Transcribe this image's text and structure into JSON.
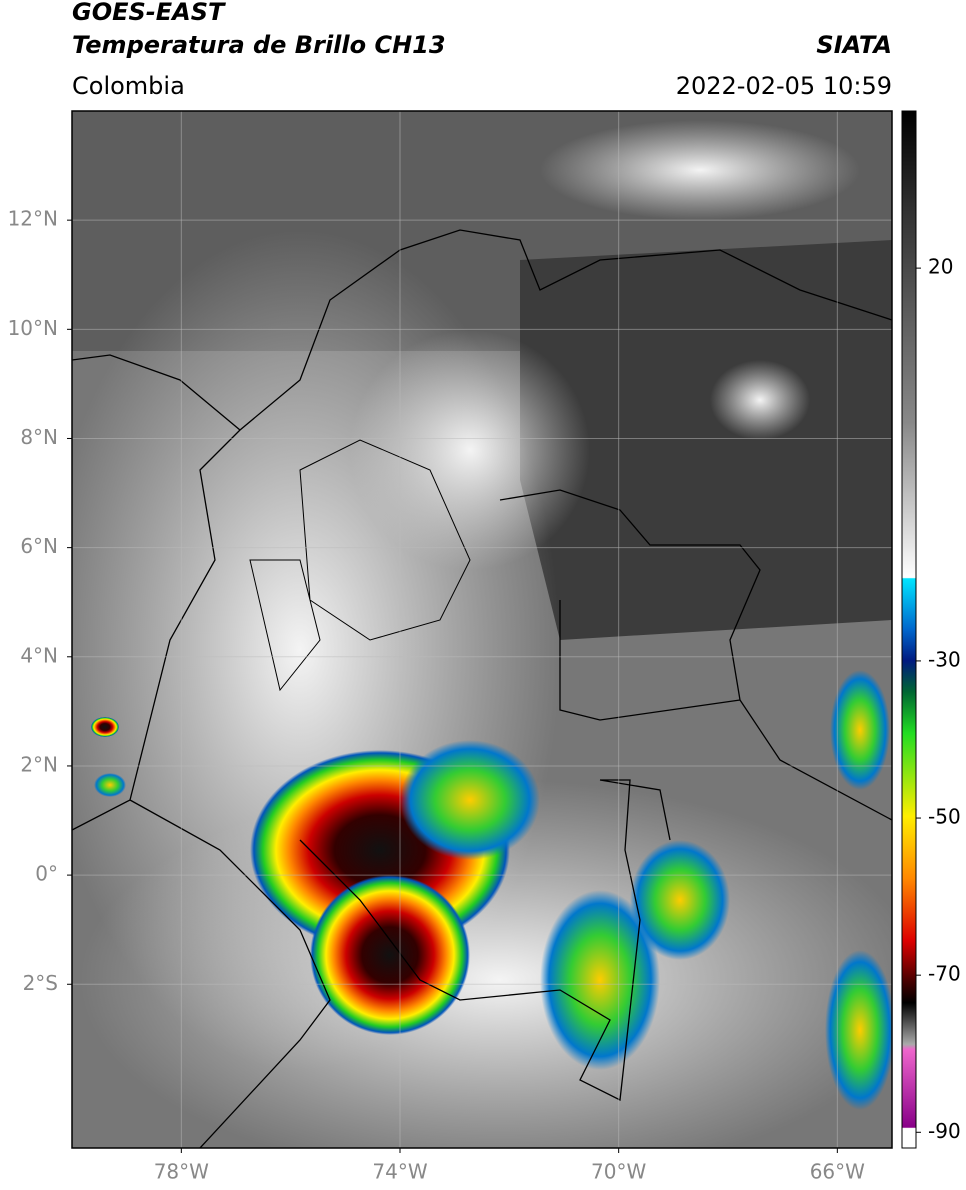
{
  "header": {
    "title": "GOES-EAST",
    "subtitle": "Temperatura de Brillo CH13",
    "source": "SIATA",
    "region": "Colombia",
    "datetime": "2022-02-05 10:59"
  },
  "map": {
    "lonlim": [
      -80,
      -65
    ],
    "latlim": [
      -5,
      14
    ],
    "grid": true,
    "lonticks": [
      {
        "value": -78,
        "label": "78°W"
      },
      {
        "value": -74,
        "label": "74°W"
      },
      {
        "value": -70,
        "label": "70°W"
      },
      {
        "value": -66,
        "label": "66°W"
      }
    ],
    "latticks": [
      {
        "value": 12,
        "label": "12°N"
      },
      {
        "value": 10,
        "label": "10°N"
      },
      {
        "value": 8,
        "label": "8°N"
      },
      {
        "value": 6,
        "label": "6°N"
      },
      {
        "value": 4,
        "label": "4°N"
      },
      {
        "value": 2,
        "label": "2°N"
      },
      {
        "value": 0,
        "label": "0°"
      },
      {
        "value": -2,
        "label": "2°S"
      }
    ]
  },
  "colorbar": {
    "lim": [
      -92,
      40
    ],
    "ticks": [
      20,
      -30,
      -50,
      -70,
      -90
    ]
  }
}
